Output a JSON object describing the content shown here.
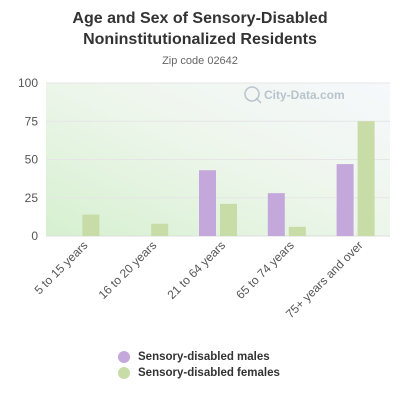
{
  "title_line1": "Age and Sex of Sensory-Disabled",
  "title_line2": "Noninstitutionalized Residents",
  "subtitle": "Zip code 02642",
  "watermark": "City-Data.com",
  "colors": {
    "males": "#c4a8dc",
    "females": "#c8dca8",
    "gridline": "#e6e6e6",
    "tick_text": "#555555"
  },
  "chart_data": {
    "type": "bar",
    "categories": [
      "5 to 15 years",
      "16 to 20 years",
      "21 to 64 years",
      "65 to 74 years",
      "75+ years and over"
    ],
    "series": [
      {
        "name": "Sensory-disabled males",
        "values": [
          0,
          0,
          43,
          28,
          47
        ]
      },
      {
        "name": "Sensory-disabled females",
        "values": [
          14,
          8,
          21,
          6,
          75
        ]
      }
    ],
    "yticks": [
      0,
      25,
      50,
      75,
      100
    ],
    "ylim": [
      0,
      100
    ],
    "legend_position": "bottom"
  }
}
